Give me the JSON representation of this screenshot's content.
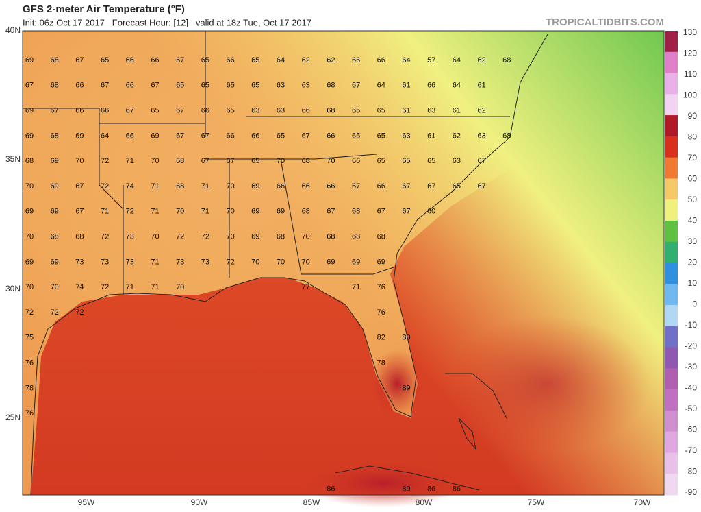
{
  "header": {
    "title": "GFS 2-meter Air Temperature (°F)",
    "subtitle": "Init: 06z Oct 17 2017   Forecast Hour: [12]   valid at 18z Tue, Oct 17 2017",
    "brand": "TROPICALTIDBITS.COM"
  },
  "latitude_labels": [
    "40N",
    "35N",
    "30N",
    "25N"
  ],
  "longitude_labels": [
    "95W",
    "90W",
    "85W",
    "80W",
    "75W",
    "70W"
  ],
  "colorbar_labels": [
    130,
    120,
    110,
    100,
    90,
    80,
    70,
    60,
    50,
    40,
    30,
    20,
    10,
    0,
    -10,
    -20,
    -30,
    -40,
    -50,
    -60,
    -70,
    -80,
    -90
  ],
  "temperature_grid": [
    [
      69,
      68,
      67,
      65,
      66,
      66,
      67,
      65,
      66,
      65,
      64,
      62,
      62,
      66,
      66,
      64,
      57,
      64,
      62,
      68
    ],
    [
      67,
      68,
      66,
      67,
      66,
      67,
      65,
      65,
      65,
      65,
      63,
      63,
      68,
      67,
      64,
      61,
      66,
      64,
      61
    ],
    [
      69,
      67,
      66,
      66,
      67,
      65,
      67,
      66,
      65,
      63,
      63,
      66,
      68,
      65,
      65,
      61,
      63,
      61,
      62
    ],
    [
      69,
      68,
      69,
      64,
      66,
      69,
      67,
      67,
      66,
      66,
      65,
      67,
      66,
      65,
      65,
      63,
      61,
      62,
      63,
      68
    ],
    [
      68,
      69,
      70,
      72,
      71,
      70,
      68,
      67,
      67,
      65,
      70,
      68,
      70,
      66,
      65,
      65,
      65,
      63,
      67
    ],
    [
      70,
      69,
      67,
      72,
      74,
      71,
      68,
      71,
      70,
      69,
      66,
      66,
      66,
      67,
      66,
      67,
      67,
      65,
      67
    ],
    [
      69,
      69,
      67,
      71,
      72,
      71,
      70,
      71,
      70,
      69,
      69,
      68,
      67,
      68,
      67,
      67,
      60
    ],
    [
      70,
      68,
      68,
      72,
      73,
      70,
      72,
      72,
      70,
      69,
      68,
      70,
      68,
      68,
      68
    ],
    [
      69,
      69,
      73,
      73,
      73,
      71,
      73,
      73,
      72,
      70,
      70,
      70,
      69,
      69,
      69
    ],
    [
      70,
      70,
      74,
      72,
      71,
      71,
      70,
      null,
      null,
      null,
      null,
      77,
      null,
      71,
      76
    ],
    [
      72,
      72,
      72,
      null,
      null,
      null,
      null,
      null,
      null,
      null,
      null,
      null,
      null,
      null,
      76
    ],
    [
      75,
      null,
      null,
      null,
      null,
      null,
      null,
      null,
      null,
      null,
      null,
      null,
      null,
      null,
      82,
      80
    ],
    [
      76,
      null,
      null,
      null,
      null,
      null,
      null,
      null,
      null,
      null,
      null,
      null,
      null,
      null,
      78
    ],
    [
      78,
      null,
      null,
      null,
      null,
      null,
      null,
      null,
      null,
      null,
      null,
      null,
      null,
      null,
      null,
      89
    ],
    [
      76
    ],
    [],
    [],
    [
      null,
      null,
      null,
      null,
      null,
      null,
      null,
      null,
      null,
      null,
      null,
      null,
      86,
      null,
      null,
      89,
      86,
      86
    ]
  ]
}
